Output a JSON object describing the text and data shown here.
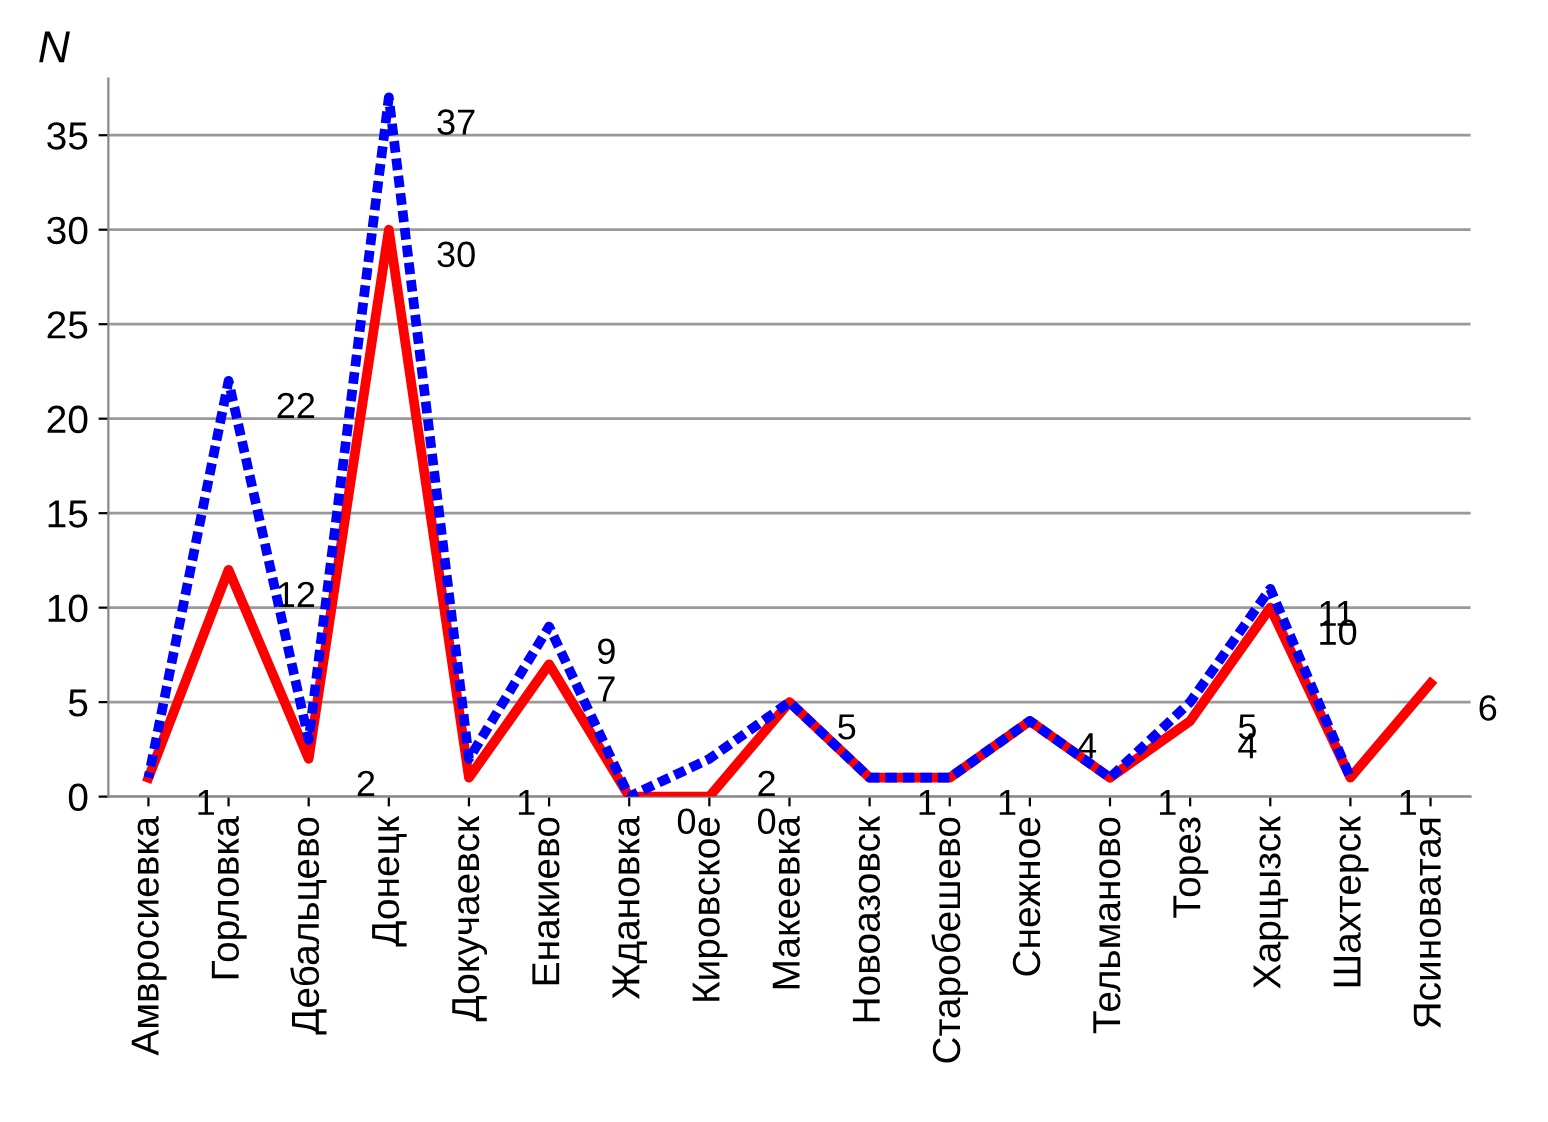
{
  "chart_data": {
    "type": "line",
    "ylabel": "N",
    "categories": [
      "Амвросиевка",
      "Горловка",
      "Дебальцево",
      "Донецк",
      "Докучаевск",
      "Енакиево",
      "Ждановка",
      "Кировское",
      "Макеевка",
      "Новоазовск",
      "Старобешево",
      "Снежное",
      "Тельманово",
      "Торез",
      "Харцызск",
      "Шахтерск",
      "Ясиноватая"
    ],
    "series": [
      {
        "color": "#0000ff",
        "line_style": "dashed",
        "values": [
          1,
          22,
          3,
          37,
          2,
          9,
          0,
          2,
          5,
          1,
          1,
          4,
          1,
          5,
          11,
          1,
          null
        ],
        "value_labels": [
          null,
          "22",
          null,
          "37",
          null,
          "9",
          null,
          "2",
          null,
          null,
          null,
          null,
          null,
          "5",
          "11",
          null,
          null
        ]
      },
      {
        "color": "#ff0000",
        "line_style": "solid",
        "values": [
          1,
          12,
          2,
          30,
          1,
          7,
          0,
          0,
          5,
          1,
          1,
          4,
          1,
          4,
          10,
          1,
          6
        ],
        "value_labels": [
          "1",
          "12",
          "2",
          "30",
          "1",
          "7",
          "0",
          "0",
          "5",
          "1",
          "1",
          "4",
          "1",
          "4",
          "10",
          "1",
          "6"
        ]
      }
    ],
    "ylim": [
      0,
      38
    ],
    "yticks": [
      0,
      5,
      10,
      15,
      20,
      25,
      30,
      35
    ],
    "grid": "y",
    "legend": false
  }
}
